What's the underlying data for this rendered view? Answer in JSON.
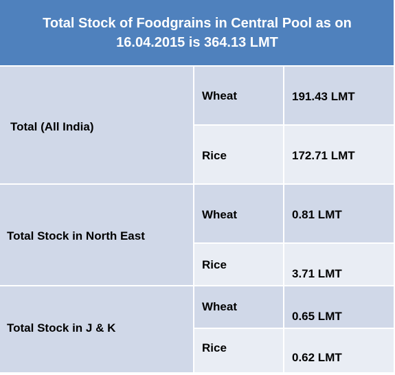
{
  "header": {
    "line1": "Total Stock of Foodgrains in Central Pool as on",
    "line2": "16.04.2015  is 364.13  LMT"
  },
  "rows": [
    {
      "region": "Total  (All India)",
      "items": [
        {
          "grain": "Wheat",
          "value": "191.43 LMT"
        },
        {
          "grain": "Rice",
          "value": "172.71 LMT"
        }
      ]
    },
    {
      "region": "Total  Stock  in North  East",
      "items": [
        {
          "grain": "Wheat",
          "value": "0.81 LMT"
        },
        {
          "grain": "Rice",
          "value": "3.71 LMT"
        }
      ]
    },
    {
      "region": "Total  Stock  in J & K",
      "items": [
        {
          "grain": "Wheat",
          "value": "0.65 LMT"
        },
        {
          "grain": "Rice",
          "value": "0.62 LMT"
        }
      ]
    }
  ],
  "colors": {
    "header_bg": "#4f81bd",
    "row_dark": "#d0d8e8",
    "row_light": "#e9edf4"
  }
}
